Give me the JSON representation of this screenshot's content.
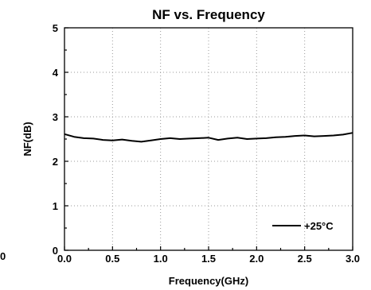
{
  "chart_data": {
    "type": "line",
    "title": "NF vs. Frequency",
    "xlabel": "Frequency(GHz)",
    "ylabel": "NF(dB)",
    "xlim": [
      0.0,
      3.0
    ],
    "ylim": [
      0,
      5
    ],
    "x_ticks": [
      0.0,
      0.5,
      1.0,
      1.5,
      2.0,
      2.5,
      3.0
    ],
    "x_tick_labels": [
      "0.0",
      "0.5",
      "1.0",
      "1.5",
      "2.0",
      "2.5",
      "3.0"
    ],
    "y_ticks": [
      0,
      1,
      2,
      3,
      4,
      5
    ],
    "y_tick_labels": [
      "0",
      "1",
      "2",
      "3",
      "4",
      "5"
    ],
    "grid": true,
    "legend_position": "bottom-right",
    "series": [
      {
        "name": "+25°C",
        "color": "#000000",
        "x": [
          0.0,
          0.1,
          0.2,
          0.3,
          0.4,
          0.5,
          0.6,
          0.7,
          0.8,
          0.9,
          1.0,
          1.1,
          1.2,
          1.3,
          1.4,
          1.5,
          1.6,
          1.7,
          1.8,
          1.9,
          2.0,
          2.1,
          2.2,
          2.3,
          2.4,
          2.5,
          2.6,
          2.7,
          2.8,
          2.9,
          3.0
        ],
        "y": [
          2.61,
          2.55,
          2.52,
          2.51,
          2.48,
          2.47,
          2.49,
          2.46,
          2.44,
          2.47,
          2.5,
          2.52,
          2.5,
          2.51,
          2.52,
          2.53,
          2.48,
          2.51,
          2.53,
          2.5,
          2.51,
          2.52,
          2.54,
          2.55,
          2.57,
          2.58,
          2.56,
          2.57,
          2.58,
          2.6,
          2.64
        ]
      }
    ]
  },
  "stray_label": "0"
}
